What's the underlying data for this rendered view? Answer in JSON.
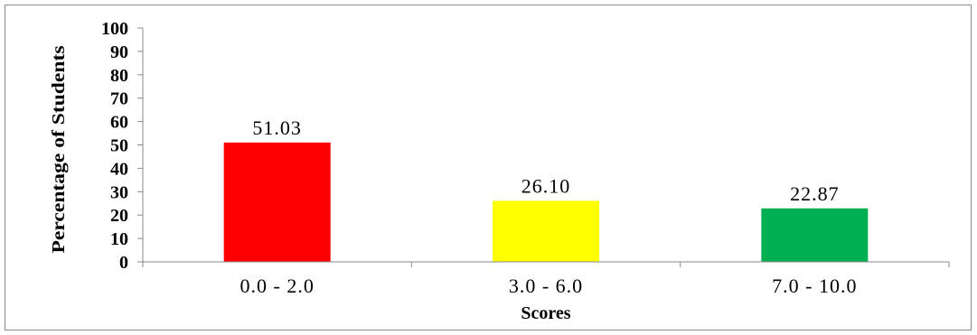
{
  "chart_data": {
    "type": "bar",
    "categories": [
      "0.0 - 2.0",
      "3.0 - 6.0",
      "7.0 - 10.0"
    ],
    "values": [
      51.03,
      26.1,
      22.87
    ],
    "data_labels": [
      "51.03",
      "26.10",
      "22.87"
    ],
    "bar_colors": [
      "#ff0000",
      "#ffff00",
      "#00b050"
    ],
    "xlabel": "Scores",
    "ylabel": "Percentage of Students",
    "ylim": [
      0,
      100
    ],
    "yticks": [
      0,
      10,
      20,
      30,
      40,
      50,
      60,
      70,
      80,
      90,
      100
    ],
    "grid": false,
    "legend": "none"
  }
}
